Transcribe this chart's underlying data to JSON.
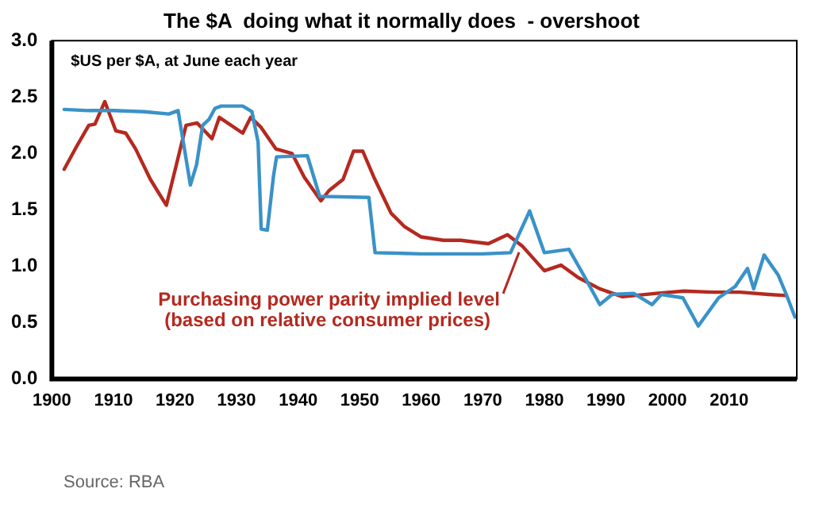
{
  "chart_data": {
    "type": "line",
    "title": "The $A  doing what it normally does  - overshoot",
    "subtitle": "$US per $A, at June each year",
    "xlim": [
      1900,
      2021
    ],
    "xticks": [
      1900,
      1910,
      1920,
      1930,
      1940,
      1950,
      1960,
      1970,
      1980,
      1990,
      2000,
      2010
    ],
    "ylim": [
      0,
      3
    ],
    "yticks": [
      {
        "value": 0,
        "label": "0.0"
      },
      {
        "value": 0.5,
        "label": "0.5"
      },
      {
        "value": 1,
        "label": "1.0"
      },
      {
        "value": 1.5,
        "label": "1.5"
      },
      {
        "value": 2,
        "label": "2.0"
      },
      {
        "value": 2.5,
        "label": "2.5"
      },
      {
        "value": 3,
        "label": "3.0"
      }
    ],
    "grid": false,
    "legend": false,
    "marker": "none",
    "line_style": "solid",
    "series": [
      {
        "color": "#3a92c8",
        "x": [
          1902,
          1906,
          1910,
          1915,
          1919,
          1920.5,
          1921.5,
          1922.5,
          1923.5,
          1924.5,
          1925.5,
          1926.5,
          1927.5,
          1931,
          1932.5,
          1933.5,
          1934,
          1935,
          1936,
          1936.5,
          1941.5,
          1942.5,
          1943.5,
          1951.5,
          1952.5,
          1960,
          1970,
          1974.5,
          1977.6,
          1980,
          1984,
          1986.5,
          1989,
          1991,
          1994.5,
          1997.5,
          1999,
          2002.5,
          2005,
          2008.3,
          2011,
          2013,
          2014,
          2015.7,
          2018,
          2019.3,
          2020.7
        ],
        "values": [
          2.39,
          2.38,
          2.38,
          2.37,
          2.35,
          2.38,
          2.05,
          1.72,
          1.9,
          2.25,
          2.3,
          2.4,
          2.42,
          2.42,
          2.37,
          2.1,
          1.33,
          1.32,
          1.8,
          1.97,
          1.98,
          1.8,
          1.62,
          1.61,
          1.12,
          1.11,
          1.11,
          1.12,
          1.49,
          1.12,
          1.15,
          0.91,
          0.66,
          0.75,
          0.76,
          0.66,
          0.75,
          0.72,
          0.47,
          0.72,
          0.82,
          0.98,
          0.8,
          1.1,
          0.92,
          0.75,
          0.55
        ]
      },
      {
        "color": "#b5291f",
        "x": [
          1902,
          1904,
          1906,
          1907,
          1908.6,
          1910.4,
          1912,
          1913.6,
          1916,
          1918.6,
          1921.8,
          1923.6,
          1926,
          1927.2,
          1931,
          1932.3,
          1934,
          1936.4,
          1939,
          1941,
          1943.7,
          1945,
          1947.3,
          1949,
          1950.5,
          1952.3,
          1955.1,
          1957.3,
          1960,
          1963.6,
          1966.4,
          1970.9,
          1974,
          1976.4,
          1980,
          1982.7,
          1985.5,
          1989,
          1992.7,
          1998.2,
          2002.7,
          2007.3,
          2011.8,
          2016.4,
          2019.3
        ],
        "values": [
          1.86,
          2.06,
          2.25,
          2.26,
          2.46,
          2.2,
          2.18,
          2.04,
          1.77,
          1.54,
          2.25,
          2.27,
          2.13,
          2.32,
          2.18,
          2.32,
          2.23,
          2.04,
          2.0,
          1.79,
          1.58,
          1.67,
          1.77,
          2.02,
          2.02,
          1.79,
          1.47,
          1.35,
          1.26,
          1.23,
          1.23,
          1.2,
          1.28,
          1.18,
          0.96,
          1.01,
          0.9,
          0.8,
          0.73,
          0.76,
          0.78,
          0.77,
          0.77,
          0.75,
          0.74
        ]
      }
    ],
    "annotations": [
      {
        "text": "Purchasing power parity implied level\n(based on relative consumer prices)",
        "x": 1976.4,
        "y": 1.18
      },
      "Source: RBA"
    ]
  }
}
